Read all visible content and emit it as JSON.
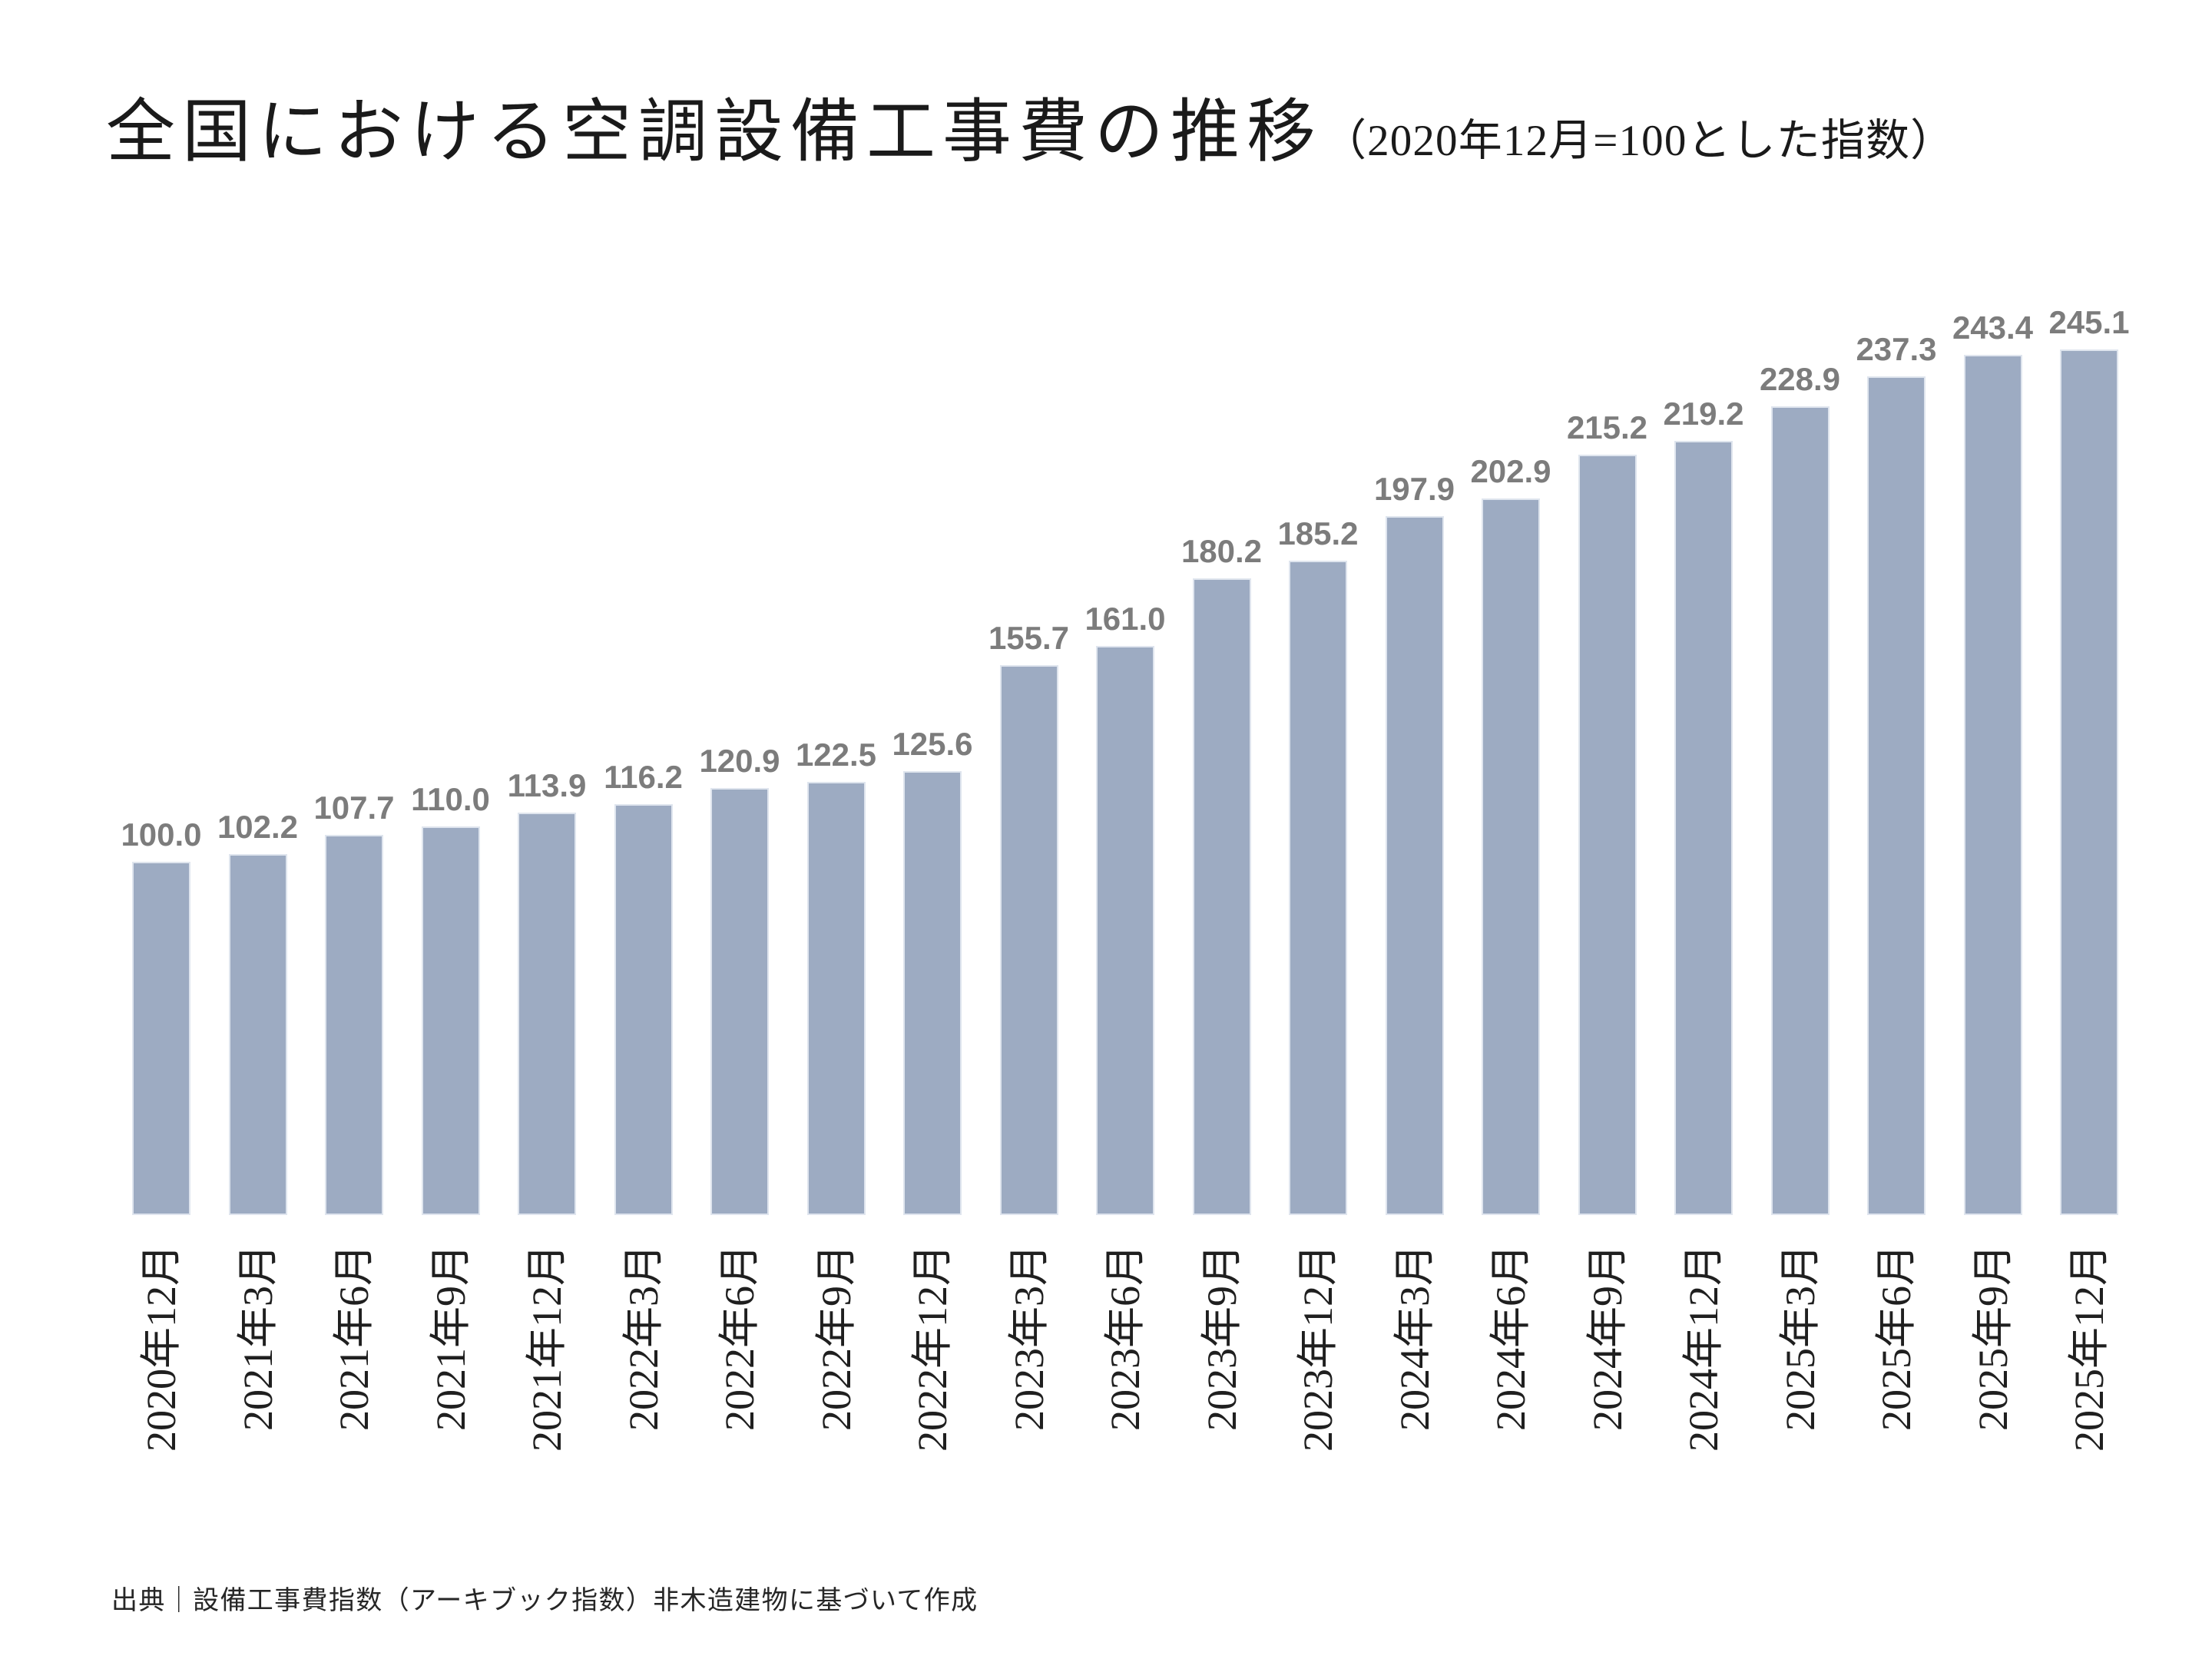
{
  "title": {
    "main": "全国における空調設備工事費の推移",
    "paren": "（2020年12月=100とした指数）"
  },
  "source_note": "出典｜設備工事費指数（アーキブック指数）非木造建物に基づいて作成",
  "colors": {
    "bar_fill": "#9dabc2",
    "bar_edge": "#dfe5ee",
    "value_label": "#7c7c7c",
    "axis_text": "#1f1f1f",
    "background": "#ffffff"
  },
  "chart_data": {
    "type": "bar",
    "title": "全国における空調設備工事費の推移（2020年12月=100とした指数）",
    "xlabel": "",
    "ylabel": "",
    "ylim": [
      0,
      250
    ],
    "grid": false,
    "legend": "none",
    "y_axis_visible": false,
    "x_tick_rotation": -90,
    "value_label_format": "0.1f",
    "categories": [
      "2020年12月",
      "2021年3月",
      "2021年6月",
      "2021年9月",
      "2021年12月",
      "2022年3月",
      "2022年6月",
      "2022年9月",
      "2022年12月",
      "2023年3月",
      "2023年6月",
      "2023年9月",
      "2023年12月",
      "2024年3月",
      "2024年6月",
      "2024年9月",
      "2024年12月",
      "2025年3月",
      "2025年6月",
      "2025年9月",
      "2025年12月"
    ],
    "values": [
      100.0,
      102.2,
      107.7,
      110.0,
      113.9,
      116.2,
      120.9,
      122.5,
      125.6,
      155.7,
      161.0,
      180.2,
      185.2,
      197.9,
      202.9,
      215.2,
      219.2,
      228.9,
      237.3,
      243.4,
      245.1
    ]
  }
}
